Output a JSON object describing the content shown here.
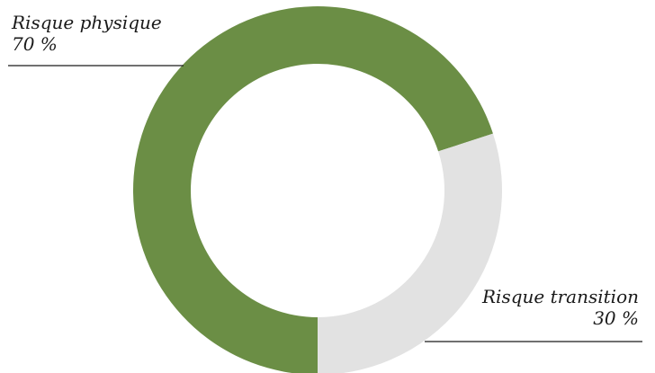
{
  "chart_data": {
    "type": "pie",
    "donut": true,
    "title": "",
    "slices": [
      {
        "label": "Risque physique",
        "value": 70,
        "value_label": "70 %",
        "color": "#6b8e45"
      },
      {
        "label": "Risque transition",
        "value": 30,
        "value_label": "30 %",
        "color": "#e2e2e2"
      }
    ],
    "start": "bottom",
    "direction": "clockwise"
  }
}
